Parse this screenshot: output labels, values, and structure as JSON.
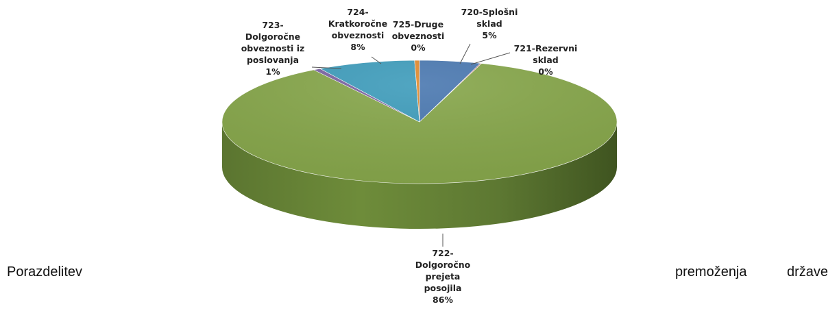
{
  "chart_data": {
    "type": "pie",
    "style": "3d",
    "title": "",
    "slices": [
      {
        "code": "720",
        "label_lines": [
          "720-Splošni",
          "sklad",
          "5%"
        ],
        "value": 5,
        "color": "#4a78b0"
      },
      {
        "code": "721",
        "label_lines": [
          "721-Rezervni",
          "sklad",
          "0%"
        ],
        "value": 0.1,
        "color": "#b44a44"
      },
      {
        "code": "722",
        "label_lines": [
          "722-",
          "Dolgoročno",
          "prejeta",
          "posojila",
          "86%"
        ],
        "value": 86,
        "color": "#86a64a"
      },
      {
        "code": "723",
        "label_lines": [
          "723-",
          "Dolgoročne",
          "obveznosti iz",
          "poslovanja",
          "1%"
        ],
        "value": 0.6,
        "color": "#7b64a2"
      },
      {
        "code": "724",
        "label_lines": [
          "724-",
          "Kratkoročne",
          "obveznosti",
          "8%"
        ],
        "value": 8,
        "color": "#3e9cbb"
      },
      {
        "code": "725",
        "label_lines": [
          "725-Druge",
          "obveznosti",
          "0%"
        ],
        "value": 0.4,
        "color": "#e08a2e"
      }
    ],
    "legend": "none"
  },
  "text": {
    "left": "Porazdelitev",
    "right_1": "premoženja",
    "right_2": "države"
  }
}
